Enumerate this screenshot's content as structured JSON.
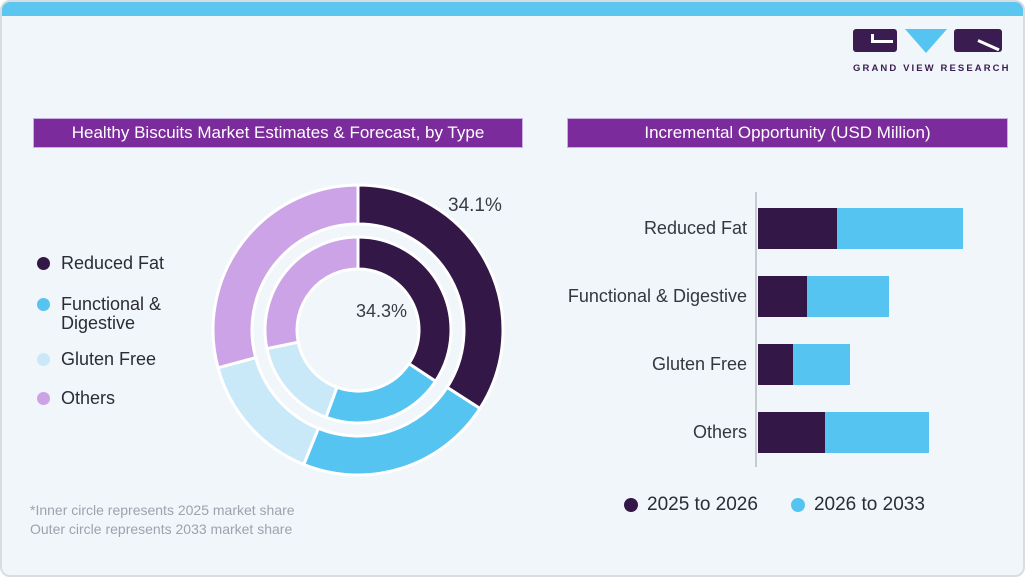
{
  "card": {
    "background": "#F1F6FA",
    "accent_strip_color": "#5BC6F0",
    "border_color": "#D9DDE2",
    "title_bar_color": "#7B2B9B"
  },
  "logo": {
    "text": "GRAND VIEW RESEARCH",
    "dark_color": "#3A1C50",
    "accent_color": "#56C4F0"
  },
  "left_panel": {
    "title": "Healthy Biscuits Market Estimates & Forecast, by Type",
    "legend": [
      {
        "label": "Reduced Fat",
        "color": "#331747"
      },
      {
        "label": "Functional & Digestive",
        "color": "#56C4F0"
      },
      {
        "label": "Gluten Free",
        "color": "#C9E8F8"
      },
      {
        "label": "Others",
        "color": "#CDA3E8"
      }
    ],
    "callouts": {
      "outer": "34.1%",
      "inner": "34.3%"
    },
    "footnotes": [
      "*Inner circle represents 2025 market share",
      "Outer circle represents 2033 market share"
    ]
  },
  "right_panel": {
    "title": "Incremental Opportunity (USD Million)",
    "legend": [
      {
        "label": "2025 to 2026",
        "color": "#331747"
      },
      {
        "label": "2026 to 2033",
        "color": "#56C4F0"
      }
    ]
  },
  "chart_data": [
    {
      "type": "pie",
      "subtype": "double-donut",
      "title": "Healthy Biscuits Market Estimates & Forecast, by Type",
      "categories": [
        "Reduced Fat",
        "Functional & Digestive",
        "Gluten Free",
        "Others"
      ],
      "colors": [
        "#331747",
        "#56C4F0",
        "#C9E8F8",
        "#CDA3E8"
      ],
      "series": [
        {
          "name": "2025 market share (inner circle)",
          "unit": "%",
          "values": [
            34.3,
            21.3,
            16.2,
            28.2
          ]
        },
        {
          "name": "2033 market share (outer circle)",
          "unit": "%",
          "values": [
            34.1,
            22.0,
            14.7,
            29.2
          ]
        }
      ],
      "data_labels": [
        {
          "text": "34.1%",
          "refers_to": "Reduced Fat, outer circle (2033)"
        },
        {
          "text": "34.3%",
          "refers_to": "Reduced Fat, inner circle (2025)"
        }
      ],
      "values_estimated_from_arc_angles": true,
      "legend_position": "left"
    },
    {
      "type": "bar",
      "orientation": "horizontal",
      "stacked": true,
      "title": "Incremental Opportunity (USD Million)",
      "categories": [
        "Reduced Fat",
        "Functional & Digestive",
        "Gluten Free",
        "Others"
      ],
      "series": [
        {
          "name": "2025 to 2026",
          "color": "#331747",
          "values": [
            79,
            49,
            35,
            67
          ]
        },
        {
          "name": "2026 to 2033",
          "color": "#56C4F0",
          "values": [
            126,
            82,
            57,
            104
          ]
        }
      ],
      "value_axis_labels_shown": false,
      "values_are_relative_estimates": true,
      "legend_position": "bottom"
    }
  ]
}
